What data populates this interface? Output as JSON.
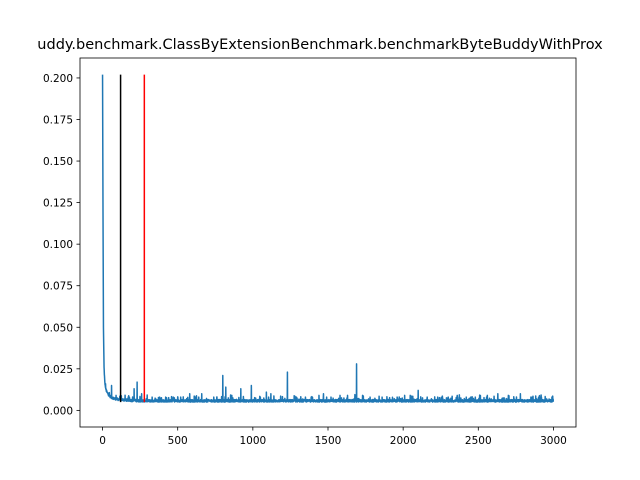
{
  "chart_data": {
    "type": "line",
    "title": "uddy.benchmark.ClassByExtensionBenchmark.benchmarkByteBuddyWithProx",
    "xlabel": "",
    "ylabel": "",
    "xlim": [
      -150,
      3150
    ],
    "ylim": [
      -0.01,
      0.212
    ],
    "x_ticks": [
      0,
      500,
      1000,
      1500,
      2000,
      2500,
      3000
    ],
    "x_tick_labels": [
      "0",
      "500",
      "1000",
      "1500",
      "2000",
      "2500",
      "3000"
    ],
    "y_ticks": [
      0.0,
      0.025,
      0.05,
      0.075,
      0.1,
      0.125,
      0.15,
      0.175,
      0.2
    ],
    "y_tick_labels": [
      "0.000",
      "0.025",
      "0.050",
      "0.075",
      "0.100",
      "0.125",
      "0.150",
      "0.175",
      "0.200"
    ],
    "grid": false,
    "n_points": 3000,
    "baseline": 0.005,
    "noise_amplitude": 0.003,
    "decay": [
      [
        0,
        0.202
      ],
      [
        3,
        0.12
      ],
      [
        6,
        0.05
      ],
      [
        10,
        0.025
      ],
      [
        15,
        0.016
      ],
      [
        22,
        0.012
      ],
      [
        30,
        0.01
      ],
      [
        45,
        0.008
      ],
      [
        70,
        0.0065
      ],
      [
        110,
        0.0058
      ],
      [
        180,
        0.0053
      ],
      [
        260,
        0.005
      ]
    ],
    "spikes": [
      [
        20,
        0.016
      ],
      [
        60,
        0.015
      ],
      [
        90,
        0.009
      ],
      [
        150,
        0.009
      ],
      [
        210,
        0.013
      ],
      [
        230,
        0.017
      ],
      [
        260,
        0.01
      ],
      [
        330,
        0.008
      ],
      [
        380,
        0.008
      ],
      [
        420,
        0.008
      ],
      [
        470,
        0.008
      ],
      [
        520,
        0.008
      ],
      [
        580,
        0.01
      ],
      [
        640,
        0.008
      ],
      [
        660,
        0.01
      ],
      [
        740,
        0.008
      ],
      [
        800,
        0.021
      ],
      [
        820,
        0.014
      ],
      [
        860,
        0.009
      ],
      [
        920,
        0.013
      ],
      [
        990,
        0.015
      ],
      [
        1050,
        0.008
      ],
      [
        1090,
        0.011
      ],
      [
        1120,
        0.01
      ],
      [
        1230,
        0.023
      ],
      [
        1290,
        0.008
      ],
      [
        1350,
        0.008
      ],
      [
        1440,
        0.009
      ],
      [
        1470,
        0.01
      ],
      [
        1520,
        0.008
      ],
      [
        1580,
        0.009
      ],
      [
        1630,
        0.009
      ],
      [
        1690,
        0.028
      ],
      [
        1730,
        0.009
      ],
      [
        1780,
        0.008
      ],
      [
        1860,
        0.008
      ],
      [
        1960,
        0.008
      ],
      [
        2010,
        0.009
      ],
      [
        2100,
        0.012
      ],
      [
        2160,
        0.008
      ],
      [
        2230,
        0.008
      ],
      [
        2300,
        0.008
      ],
      [
        2360,
        0.009
      ],
      [
        2420,
        0.008
      ],
      [
        2480,
        0.008
      ],
      [
        2560,
        0.009
      ],
      [
        2630,
        0.01
      ],
      [
        2700,
        0.009
      ],
      [
        2780,
        0.01
      ],
      [
        2850,
        0.008
      ],
      [
        2920,
        0.008
      ],
      [
        2990,
        0.008
      ]
    ],
    "series": [
      {
        "name": "timings",
        "color": "#1f77b4"
      }
    ],
    "vlines": [
      {
        "name": "black-marker",
        "x": 120,
        "y_top": 0.202,
        "color": "#000000"
      },
      {
        "name": "red-marker",
        "x": 278,
        "y_top": 0.202,
        "color": "#ff0000"
      }
    ]
  }
}
